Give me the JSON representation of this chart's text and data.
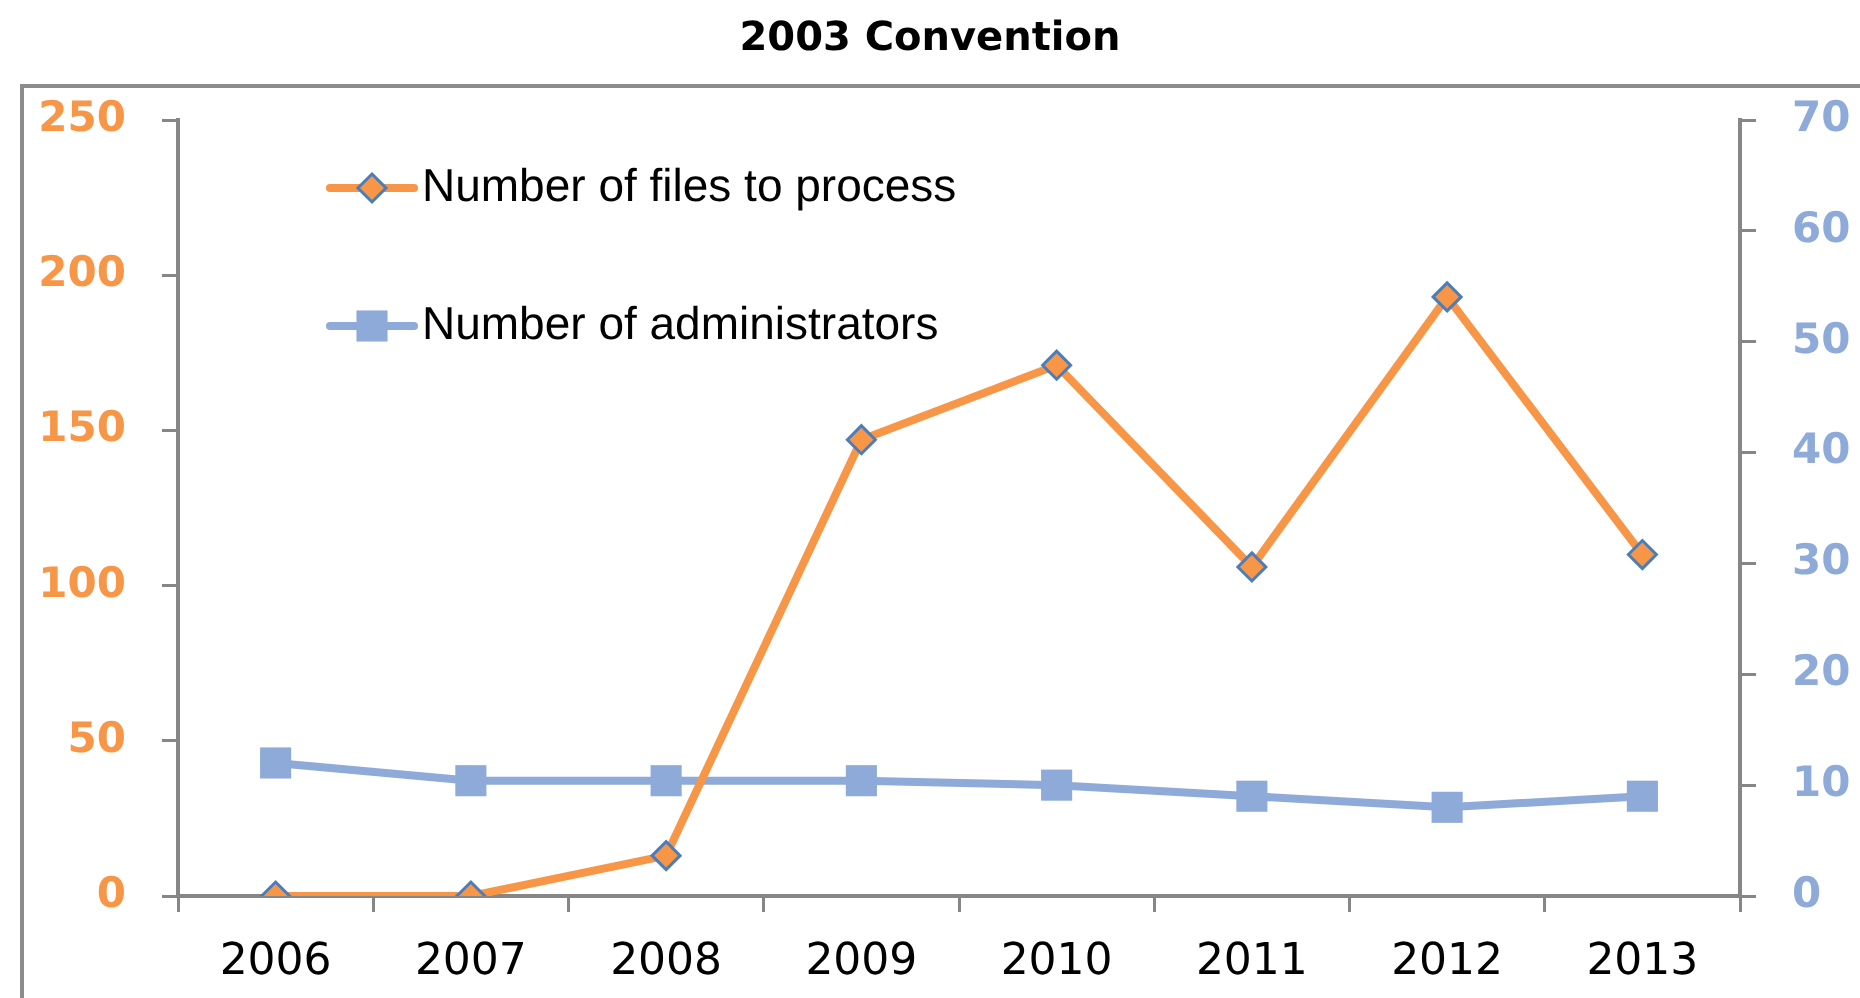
{
  "chart_data": {
    "type": "line",
    "title": "2003 Convention",
    "categories": [
      "2006",
      "2007",
      "2008",
      "2009",
      "2010",
      "2011",
      "2012",
      "2013"
    ],
    "series": [
      {
        "name": "Number of files to process",
        "color": "#f79646",
        "marker": "diamond",
        "values": [
          0,
          0,
          13,
          147,
          171,
          106,
          193,
          110
        ]
      },
      {
        "name": "Number of administrators",
        "color": "#8eaad8",
        "marker": "square",
        "axis": "y2",
        "values": [
          12,
          10.4,
          10.4,
          10.4,
          10,
          9,
          8,
          9
        ]
      }
    ],
    "ylim": [
      0,
      250
    ],
    "yticks": [
      0,
      50,
      100,
      150,
      200,
      250
    ],
    "y2lim": [
      0,
      70
    ],
    "y2ticks": [
      0,
      10,
      20,
      30,
      40,
      50,
      60,
      70
    ],
    "grid": false,
    "legend": "top left"
  }
}
